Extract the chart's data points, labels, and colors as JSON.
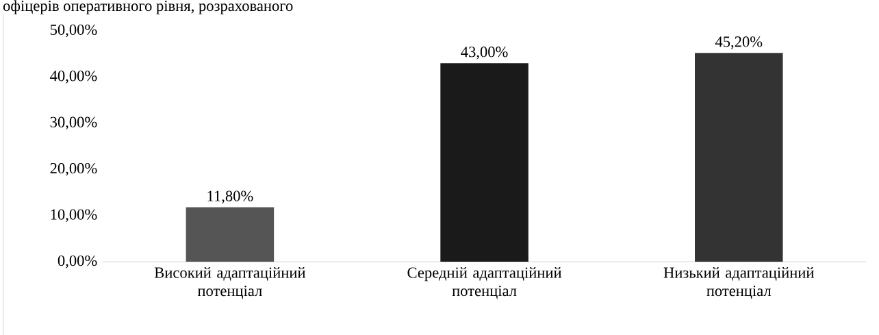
{
  "chart_data": {
    "type": "bar",
    "annotations": [
      "офіцерів оперативного рівня, розрахованого"
    ],
    "categories": [
      "Високий адаптаційний потенціал",
      "Середній адаптаційний потенціал",
      "Низький адаптаційний потенціал"
    ],
    "values": [
      11.8,
      43.0,
      45.2
    ],
    "value_labels": [
      "11,80%",
      "43,00%",
      "45,20%"
    ],
    "colors": [
      "#555555",
      "#1a1a1a",
      "#333333"
    ],
    "ylim": [
      0,
      50
    ],
    "yticks": [
      {
        "value": 0,
        "label": "0,00%"
      },
      {
        "value": 10,
        "label": "10,00%"
      },
      {
        "value": 20,
        "label": "20,00%"
      },
      {
        "value": 30,
        "label": "30,00%"
      },
      {
        "value": 40,
        "label": "40,00%"
      },
      {
        "value": 50,
        "label": "50,00%"
      }
    ]
  }
}
